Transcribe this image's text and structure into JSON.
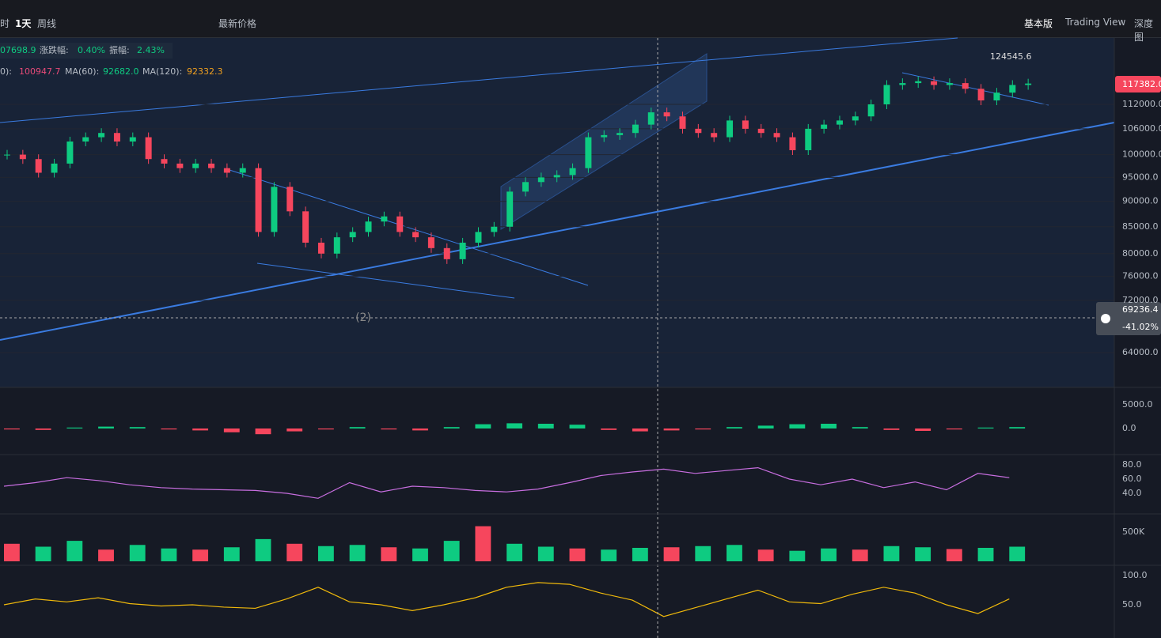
{
  "toolbar": {
    "left": [
      "时",
      "1天",
      "周线",
      "最新价格"
    ],
    "right": [
      "基本版",
      "Trading View",
      "深度图"
    ]
  },
  "info": {
    "close": "07698.9",
    "change_label": "涨跌幅:",
    "change": "0.40%",
    "amp_label": "振幅:",
    "amp": "2.43%"
  },
  "ma": {
    "ma_a_label": "0):",
    "ma_a": "100947.7",
    "ma60_label": "MA(60):",
    "ma60": "92682.0",
    "ma120_label": "MA(120):",
    "ma120": "92332.3"
  },
  "chart": {
    "high_label": "124545.6",
    "last_price": "117382.0",
    "crosshair_price": "69236.4",
    "crosshair_pct": "-41.02%",
    "marker": "(2)",
    "log_scale": true,
    "yticks": [
      {
        "value": 112000,
        "label": "112000.0"
      },
      {
        "value": 106000,
        "label": "106000.0"
      },
      {
        "value": 100000,
        "label": "100000.0"
      },
      {
        "value": 95000,
        "label": "95000.0"
      },
      {
        "value": 90000,
        "label": "90000.0"
      },
      {
        "value": 85000,
        "label": "85000.0"
      },
      {
        "value": 80000,
        "label": "80000.0"
      },
      {
        "value": 76000,
        "label": "76000.0"
      },
      {
        "value": 72000,
        "label": "72000.0"
      },
      {
        "value": 64000,
        "label": "64000.0"
      }
    ],
    "closes": [
      100000,
      99000,
      96000,
      98000,
      103000,
      104000,
      105000,
      103000,
      104000,
      99000,
      98000,
      97000,
      98000,
      97000,
      96000,
      97000,
      84000,
      93000,
      88000,
      82000,
      80000,
      83000,
      84000,
      86000,
      87000,
      84000,
      83000,
      81000,
      79000,
      82000,
      84000,
      85000,
      92000,
      94000,
      95000,
      95500,
      97000,
      104000,
      104500,
      105000,
      107000,
      110000,
      109000,
      106000,
      105000,
      104000,
      108000,
      106000,
      105000,
      104000,
      101000,
      106000,
      107000,
      108000,
      109000,
      112000,
      117000,
      117500,
      118000,
      117000,
      117500,
      116000,
      113000,
      115000,
      117000,
      117382
    ],
    "up_color": "#0ecb81",
    "down_color": "#f6465d"
  },
  "macd": {
    "yticks": [
      {
        "value": 5000,
        "label": "5000.0"
      },
      {
        "value": 0,
        "label": "0.0"
      }
    ],
    "values": [
      -200,
      -300,
      200,
      400,
      300,
      -200,
      -400,
      -800,
      -1200,
      -600,
      -200,
      300,
      -200,
      -400,
      300,
      900,
      1100,
      1000,
      800,
      -300,
      -600,
      -400,
      -200,
      300,
      600,
      900,
      1000,
      300,
      -300,
      -500,
      -200,
      200,
      300
    ]
  },
  "rsi": {
    "yticks": [
      {
        "value": 80,
        "label": "80.0"
      },
      {
        "value": 60,
        "label": "60.0"
      },
      {
        "value": 40,
        "label": "40.0"
      }
    ],
    "color": "#c86ee0",
    "values": [
      50,
      55,
      62,
      58,
      52,
      48,
      46,
      45,
      44,
      40,
      33,
      55,
      42,
      50,
      48,
      44,
      42,
      46,
      55,
      65,
      70,
      74,
      68,
      72,
      76,
      60,
      52,
      60,
      48,
      56,
      45,
      68,
      62
    ]
  },
  "volume": {
    "yticks": [
      {
        "value": 500000,
        "label": "500K"
      }
    ],
    "values": [
      300000,
      250000,
      350000,
      200000,
      280000,
      220000,
      200000,
      240000,
      380000,
      300000,
      260000,
      280000,
      240000,
      220000,
      350000,
      600000,
      300000,
      250000,
      220000,
      200000,
      230000,
      240000,
      260000,
      280000,
      200000,
      180000,
      220000,
      200000,
      260000,
      240000,
      210000,
      230000,
      250000
    ]
  },
  "kdj": {
    "yticks": [
      {
        "value": 100,
        "label": "100.0"
      },
      {
        "value": 50,
        "label": "50.0"
      }
    ],
    "color": "#f0b90b",
    "values": [
      50,
      60,
      55,
      62,
      52,
      48,
      50,
      46,
      44,
      60,
      80,
      55,
      50,
      40,
      50,
      62,
      80,
      88,
      85,
      70,
      58,
      30,
      45,
      60,
      75,
      55,
      52,
      68,
      80,
      70,
      50,
      35,
      60
    ]
  }
}
